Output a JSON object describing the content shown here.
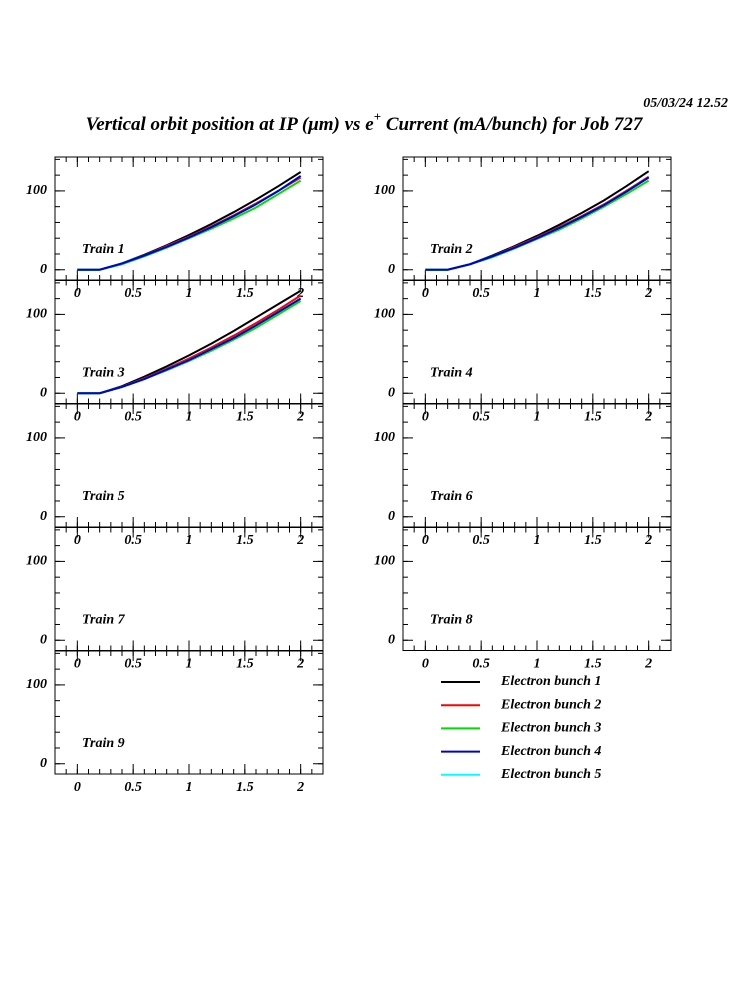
{
  "timestamp": "05/03/24   12.52",
  "title": [
    "Vertical orbit position at IP (μm) vs e",
    "+",
    " Current (mA/bunch) for Job 727"
  ],
  "chart_data": [
    {
      "type": "line",
      "title": "Train 1",
      "x": [
        0,
        0.1,
        0.2,
        0.4,
        0.6,
        0.8,
        1,
        1.2,
        1.4,
        1.6,
        1.8,
        2
      ],
      "xlim": [
        -0.2,
        2.2
      ],
      "ylim": [
        -13,
        143
      ],
      "xticks": [
        0,
        0.5,
        1,
        1.5,
        2
      ],
      "yticks": [
        0,
        100
      ],
      "series": [
        {
          "name": "Electron bunch 1",
          "color": "#000000",
          "values": [
            0,
            0,
            0,
            8,
            19,
            31,
            44,
            58,
            73,
            89,
            106,
            124
          ]
        },
        {
          "name": "Electron bunch 2",
          "color": "#ff0000",
          "values": [
            0,
            0,
            0,
            8,
            18,
            30,
            42,
            55,
            69,
            84,
            100,
            117
          ]
        },
        {
          "name": "Electron bunch 3",
          "color": "#00dd00",
          "values": [
            0,
            0,
            0,
            7,
            17,
            28,
            40,
            52,
            65,
            79,
            96,
            113
          ]
        },
        {
          "name": "Electron bunch 5",
          "color": "#00ffff",
          "values": [
            0,
            0,
            0,
            8,
            18,
            29,
            41,
            54,
            68,
            83,
            100,
            119
          ]
        },
        {
          "name": "Electron bunch 4",
          "color": "#0000cc",
          "values": [
            0,
            0,
            0,
            8,
            18,
            29,
            41,
            54,
            68,
            83,
            100,
            119
          ]
        }
      ]
    },
    {
      "type": "line",
      "title": "Train 2",
      "x": [
        0,
        0.1,
        0.2,
        0.4,
        0.6,
        0.8,
        1,
        1.2,
        1.4,
        1.6,
        1.8,
        2
      ],
      "xlim": [
        -0.2,
        2.2
      ],
      "ylim": [
        -13,
        143
      ],
      "xticks": [
        0,
        0.5,
        1,
        1.5,
        2
      ],
      "yticks": [
        0,
        100
      ],
      "series": [
        {
          "name": "Electron bunch 1",
          "color": "#000000",
          "values": [
            0,
            0,
            0,
            7,
            18,
            30,
            43,
            57,
            72,
            88,
            106,
            125
          ]
        },
        {
          "name": "Electron bunch 2",
          "color": "#ff0000",
          "values": [
            0,
            0,
            0,
            7,
            17,
            29,
            41,
            54,
            68,
            83,
            100,
            118
          ]
        },
        {
          "name": "Electron bunch 3",
          "color": "#00dd00",
          "values": [
            0,
            0,
            0,
            7,
            16,
            27,
            39,
            51,
            65,
            80,
            96,
            113
          ]
        },
        {
          "name": "Electron bunch 5",
          "color": "#00ffff",
          "values": [
            0,
            0,
            0,
            7,
            17,
            28,
            40,
            53,
            67,
            82,
            99,
            117
          ]
        },
        {
          "name": "Electron bunch 4",
          "color": "#0000cc",
          "values": [
            0,
            0,
            0,
            7,
            17,
            28,
            40,
            53,
            67,
            82,
            99,
            117
          ]
        }
      ]
    },
    {
      "type": "line",
      "title": "Train 3",
      "x": [
        0,
        0.1,
        0.2,
        0.4,
        0.6,
        0.8,
        1,
        1.2,
        1.4,
        1.6,
        1.8,
        2
      ],
      "xlim": [
        -0.2,
        2.2
      ],
      "ylim": [
        -13,
        143
      ],
      "xticks": [
        0,
        0.5,
        1,
        1.5,
        2
      ],
      "yticks": [
        0,
        100
      ],
      "series": [
        {
          "name": "Electron bunch 1",
          "color": "#000000",
          "values": [
            0,
            0,
            0,
            9,
            21,
            34,
            48,
            63,
            79,
            96,
            113,
            130
          ]
        },
        {
          "name": "Electron bunch 2",
          "color": "#ff0000",
          "values": [
            0,
            0,
            0,
            8,
            19,
            31,
            44,
            58,
            73,
            89,
            106,
            124
          ]
        },
        {
          "name": "Electron bunch 3",
          "color": "#00dd00",
          "values": [
            0,
            0,
            0,
            8,
            18,
            29,
            41,
            54,
            68,
            83,
            100,
            117
          ]
        },
        {
          "name": "Electron bunch 5",
          "color": "#00ffff",
          "values": [
            0,
            0,
            0,
            8,
            18,
            30,
            42,
            56,
            70,
            86,
            103,
            120
          ]
        },
        {
          "name": "Electron bunch 4",
          "color": "#0000cc",
          "values": [
            0,
            0,
            0,
            8,
            18,
            30,
            42,
            56,
            70,
            86,
            103,
            120
          ]
        }
      ]
    },
    {
      "type": "line",
      "title": "Train 4",
      "xlim": [
        -0.2,
        2.2
      ],
      "ylim": [
        -13,
        143
      ],
      "xticks": [
        0,
        0.5,
        1,
        1.5,
        2
      ],
      "yticks": [
        0,
        100
      ],
      "series": []
    },
    {
      "type": "line",
      "title": "Train 5",
      "xlim": [
        -0.2,
        2.2
      ],
      "ylim": [
        -13,
        143
      ],
      "xticks": [
        0,
        0.5,
        1,
        1.5,
        2
      ],
      "yticks": [
        0,
        100
      ],
      "series": []
    },
    {
      "type": "line",
      "title": "Train 6",
      "xlim": [
        -0.2,
        2.2
      ],
      "ylim": [
        -13,
        143
      ],
      "xticks": [
        0,
        0.5,
        1,
        1.5,
        2
      ],
      "yticks": [
        0,
        100
      ],
      "series": []
    },
    {
      "type": "line",
      "title": "Train 7",
      "xlim": [
        -0.2,
        2.2
      ],
      "ylim": [
        -13,
        143
      ],
      "xticks": [
        0,
        0.5,
        1,
        1.5,
        2
      ],
      "yticks": [
        0,
        100
      ],
      "series": []
    },
    {
      "type": "line",
      "title": "Train 8",
      "xlim": [
        -0.2,
        2.2
      ],
      "ylim": [
        -13,
        143
      ],
      "xticks": [
        0,
        0.5,
        1,
        1.5,
        2
      ],
      "yticks": [
        0,
        100
      ],
      "series": []
    },
    {
      "type": "line",
      "title": "Train 9",
      "xlim": [
        -0.2,
        2.2
      ],
      "ylim": [
        -13,
        143
      ],
      "xticks": [
        0,
        0.5,
        1,
        1.5,
        2
      ],
      "yticks": [
        0,
        100
      ],
      "series": []
    }
  ]
}
